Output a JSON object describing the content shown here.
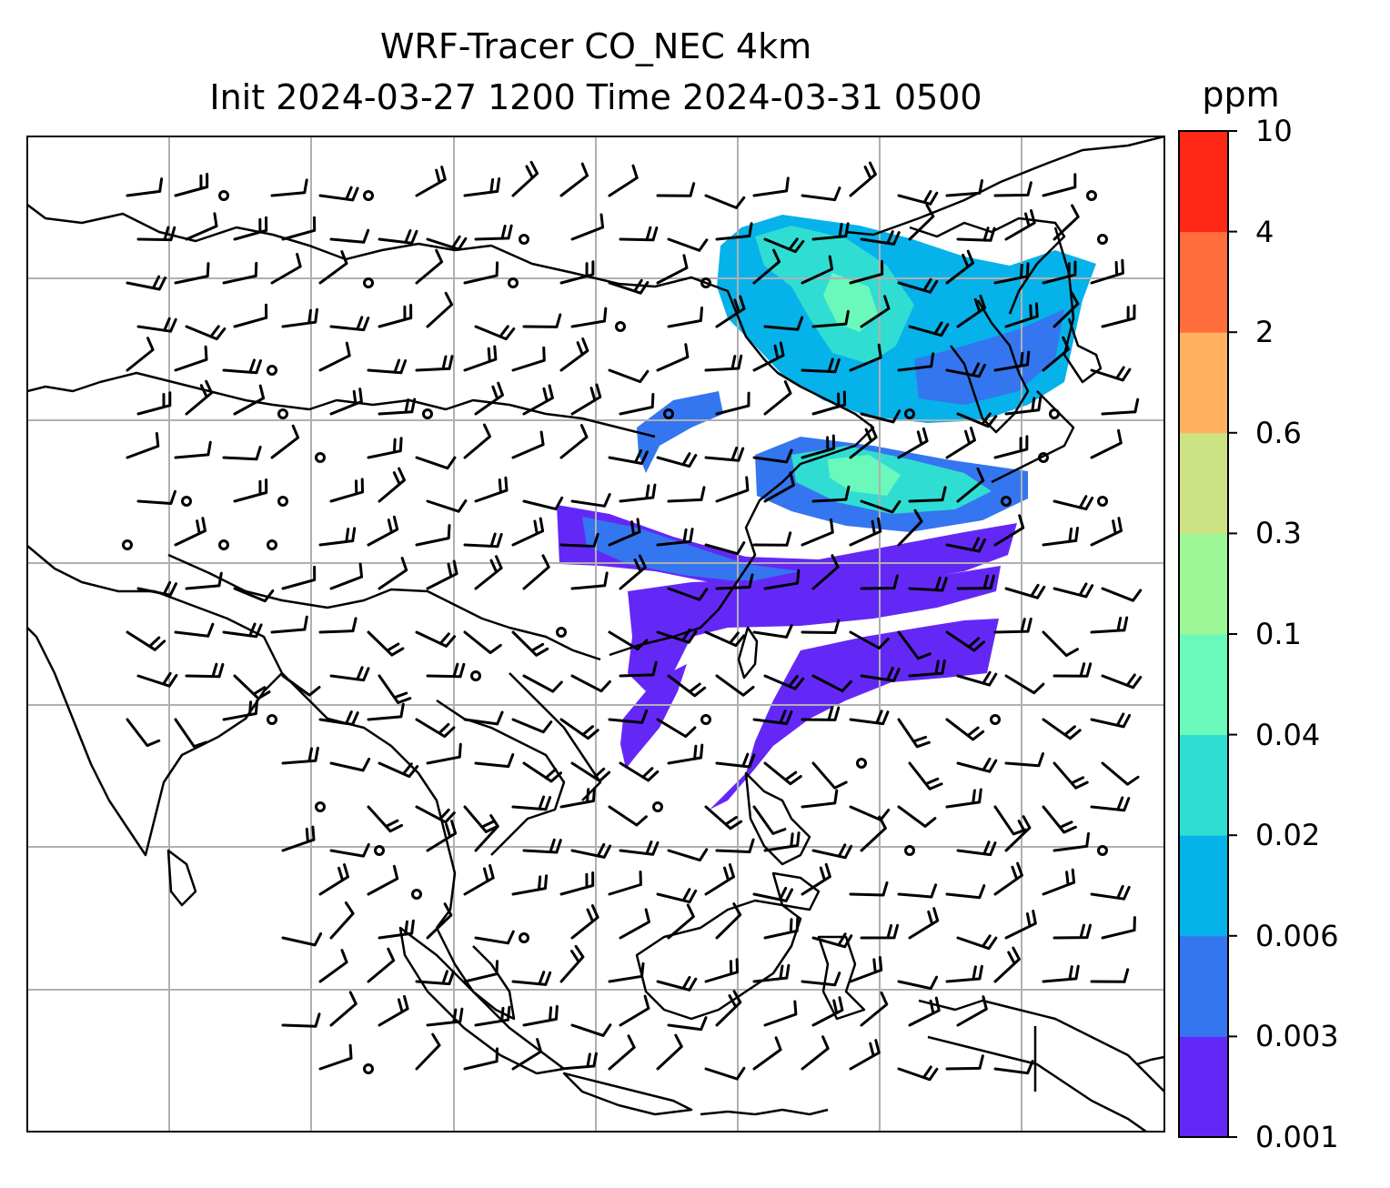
{
  "title": {
    "line1": "WRF-Tracer CO_NEC 4km",
    "line2": "Init 2024-03-27 1200 Time 2024-03-31 0500"
  },
  "colorbar": {
    "unit": "ppm",
    "levels": [
      "0.001",
      "0.003",
      "0.006",
      "0.02",
      "0.04",
      "0.1",
      "0.3",
      "0.6",
      "2",
      "4",
      "10"
    ],
    "colors": [
      "#6428f6",
      "#3476f0",
      "#06b2ea",
      "#2fddd3",
      "#6af8bb",
      "#9cf797",
      "#cde283",
      "#ffb15f",
      "#ff6e3c",
      "#ff2816"
    ]
  },
  "map": {
    "colormap": "rainbow",
    "gridline_color": "#b0b0b0",
    "coastline_color": "#000000",
    "barb_color": "#000000",
    "plume_colors": {
      "0.001": "#6428f6",
      "0.003": "#3476f0",
      "0.006": "#06b2ea",
      "0.02": "#2fddd3",
      "0.04": "#6af8bb"
    }
  }
}
